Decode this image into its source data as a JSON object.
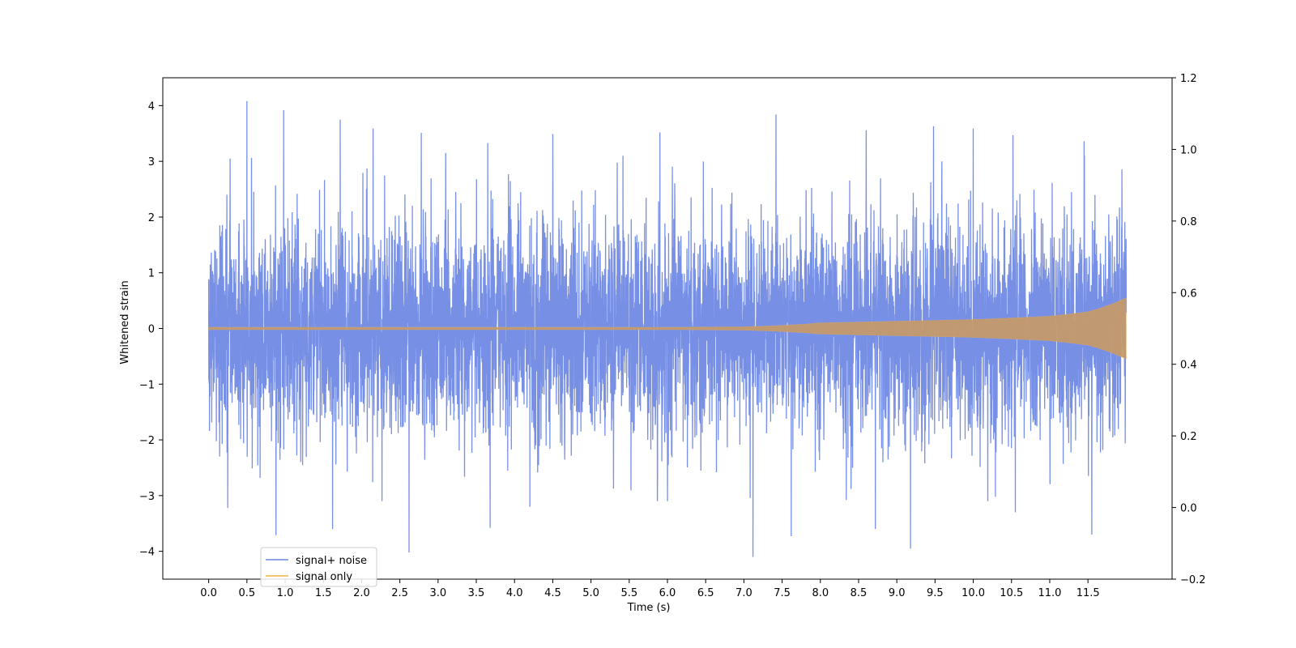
{
  "chart_data": {
    "type": "line",
    "xlabel": "Time (s)",
    "ylabel": "Whitened strain",
    "xlim": [
      -0.6,
      12.6
    ],
    "ylim": [
      -4.5,
      4.5
    ],
    "y2lim": [
      -0.2,
      1.2
    ],
    "x_ticks": [
      0.0,
      0.5,
      1.0,
      1.5,
      2.0,
      2.5,
      3.0,
      3.5,
      4.0,
      4.5,
      5.0,
      5.5,
      6.0,
      6.5,
      7.0,
      7.5,
      8.0,
      8.5,
      9.0,
      9.5,
      10.0,
      10.5,
      11.0,
      11.5
    ],
    "x_tick_labels": [
      "0.0",
      "0.5",
      "1.0",
      "1.5",
      "2.0",
      "2.5",
      "3.0",
      "3.5",
      "4.0",
      "4.5",
      "5.0",
      "5.5",
      "6.0",
      "6.5",
      "7.0",
      "7.5",
      "8.0",
      "8.5",
      "9.0",
      "9.5",
      "10.0",
      "10.5",
      "11.0",
      "11.5"
    ],
    "y_ticks": [
      -4,
      -3,
      -2,
      -1,
      0,
      1,
      2,
      3,
      4
    ],
    "y_tick_labels": [
      "−4",
      "−3",
      "−2",
      "−1",
      "0",
      "1",
      "2",
      "3",
      "4"
    ],
    "y2_ticks": [
      -0.2,
      0.0,
      0.2,
      0.4,
      0.6,
      0.8,
      1.0,
      1.2
    ],
    "y2_tick_labels": [
      "−0.2",
      "0.0",
      "0.2",
      "0.4",
      "0.6",
      "0.8",
      "1.0",
      "1.2"
    ],
    "grid": false,
    "legend_position": "lower-left",
    "series": [
      {
        "name": "signal+ noise",
        "color": "#6b87e3",
        "x_range": [
          0.0,
          12.0
        ],
        "description_envelope": [
          {
            "x": 0.0,
            "y": 0.0
          },
          {
            "x": 12.0,
            "y": 0.0
          }
        ],
        "peaks": [
          {
            "x": 0.5,
            "y": 4.08
          },
          {
            "x": 0.98,
            "y": 3.92
          },
          {
            "x": 0.28,
            "y": 3.05
          },
          {
            "x": 1.72,
            "y": 3.75
          },
          {
            "x": 2.15,
            "y": 3.59
          },
          {
            "x": 2.78,
            "y": 3.51
          },
          {
            "x": 3.1,
            "y": 3.15
          },
          {
            "x": 3.65,
            "y": 3.33
          },
          {
            "x": 4.5,
            "y": 3.49
          },
          {
            "x": 5.9,
            "y": 3.52
          },
          {
            "x": 7.42,
            "y": 3.84
          },
          {
            "x": 8.6,
            "y": 3.56
          },
          {
            "x": 9.48,
            "y": 3.63
          },
          {
            "x": 10.0,
            "y": 3.59
          },
          {
            "x": 10.52,
            "y": 3.47
          },
          {
            "x": 11.45,
            "y": 3.36
          },
          {
            "x": 0.88,
            "y": -3.71
          },
          {
            "x": 1.62,
            "y": -3.6
          },
          {
            "x": 2.62,
            "y": -4.02
          },
          {
            "x": 3.68,
            "y": -3.58
          },
          {
            "x": 7.12,
            "y": -4.1
          },
          {
            "x": 7.62,
            "y": -3.73
          },
          {
            "x": 8.72,
            "y": -3.6
          },
          {
            "x": 9.18,
            "y": -3.95
          },
          {
            "x": 10.55,
            "y": -3.3
          },
          {
            "x": 11.55,
            "y": -3.7
          },
          {
            "x": 0.25,
            "y": -3.22
          },
          {
            "x": 4.2,
            "y": -3.2
          }
        ]
      },
      {
        "name": "signal only",
        "color": "#f5b041",
        "x_range": [
          0.0,
          12.0
        ],
        "amplitude_envelope": [
          {
            "x": 0.0,
            "y": 0.02
          },
          {
            "x": 6.0,
            "y": 0.02
          },
          {
            "x": 7.0,
            "y": 0.03
          },
          {
            "x": 8.0,
            "y": 0.1
          },
          {
            "x": 9.0,
            "y": 0.13
          },
          {
            "x": 10.0,
            "y": 0.16
          },
          {
            "x": 11.0,
            "y": 0.22
          },
          {
            "x": 11.5,
            "y": 0.3
          },
          {
            "x": 12.0,
            "y": 0.55
          }
        ]
      }
    ]
  }
}
